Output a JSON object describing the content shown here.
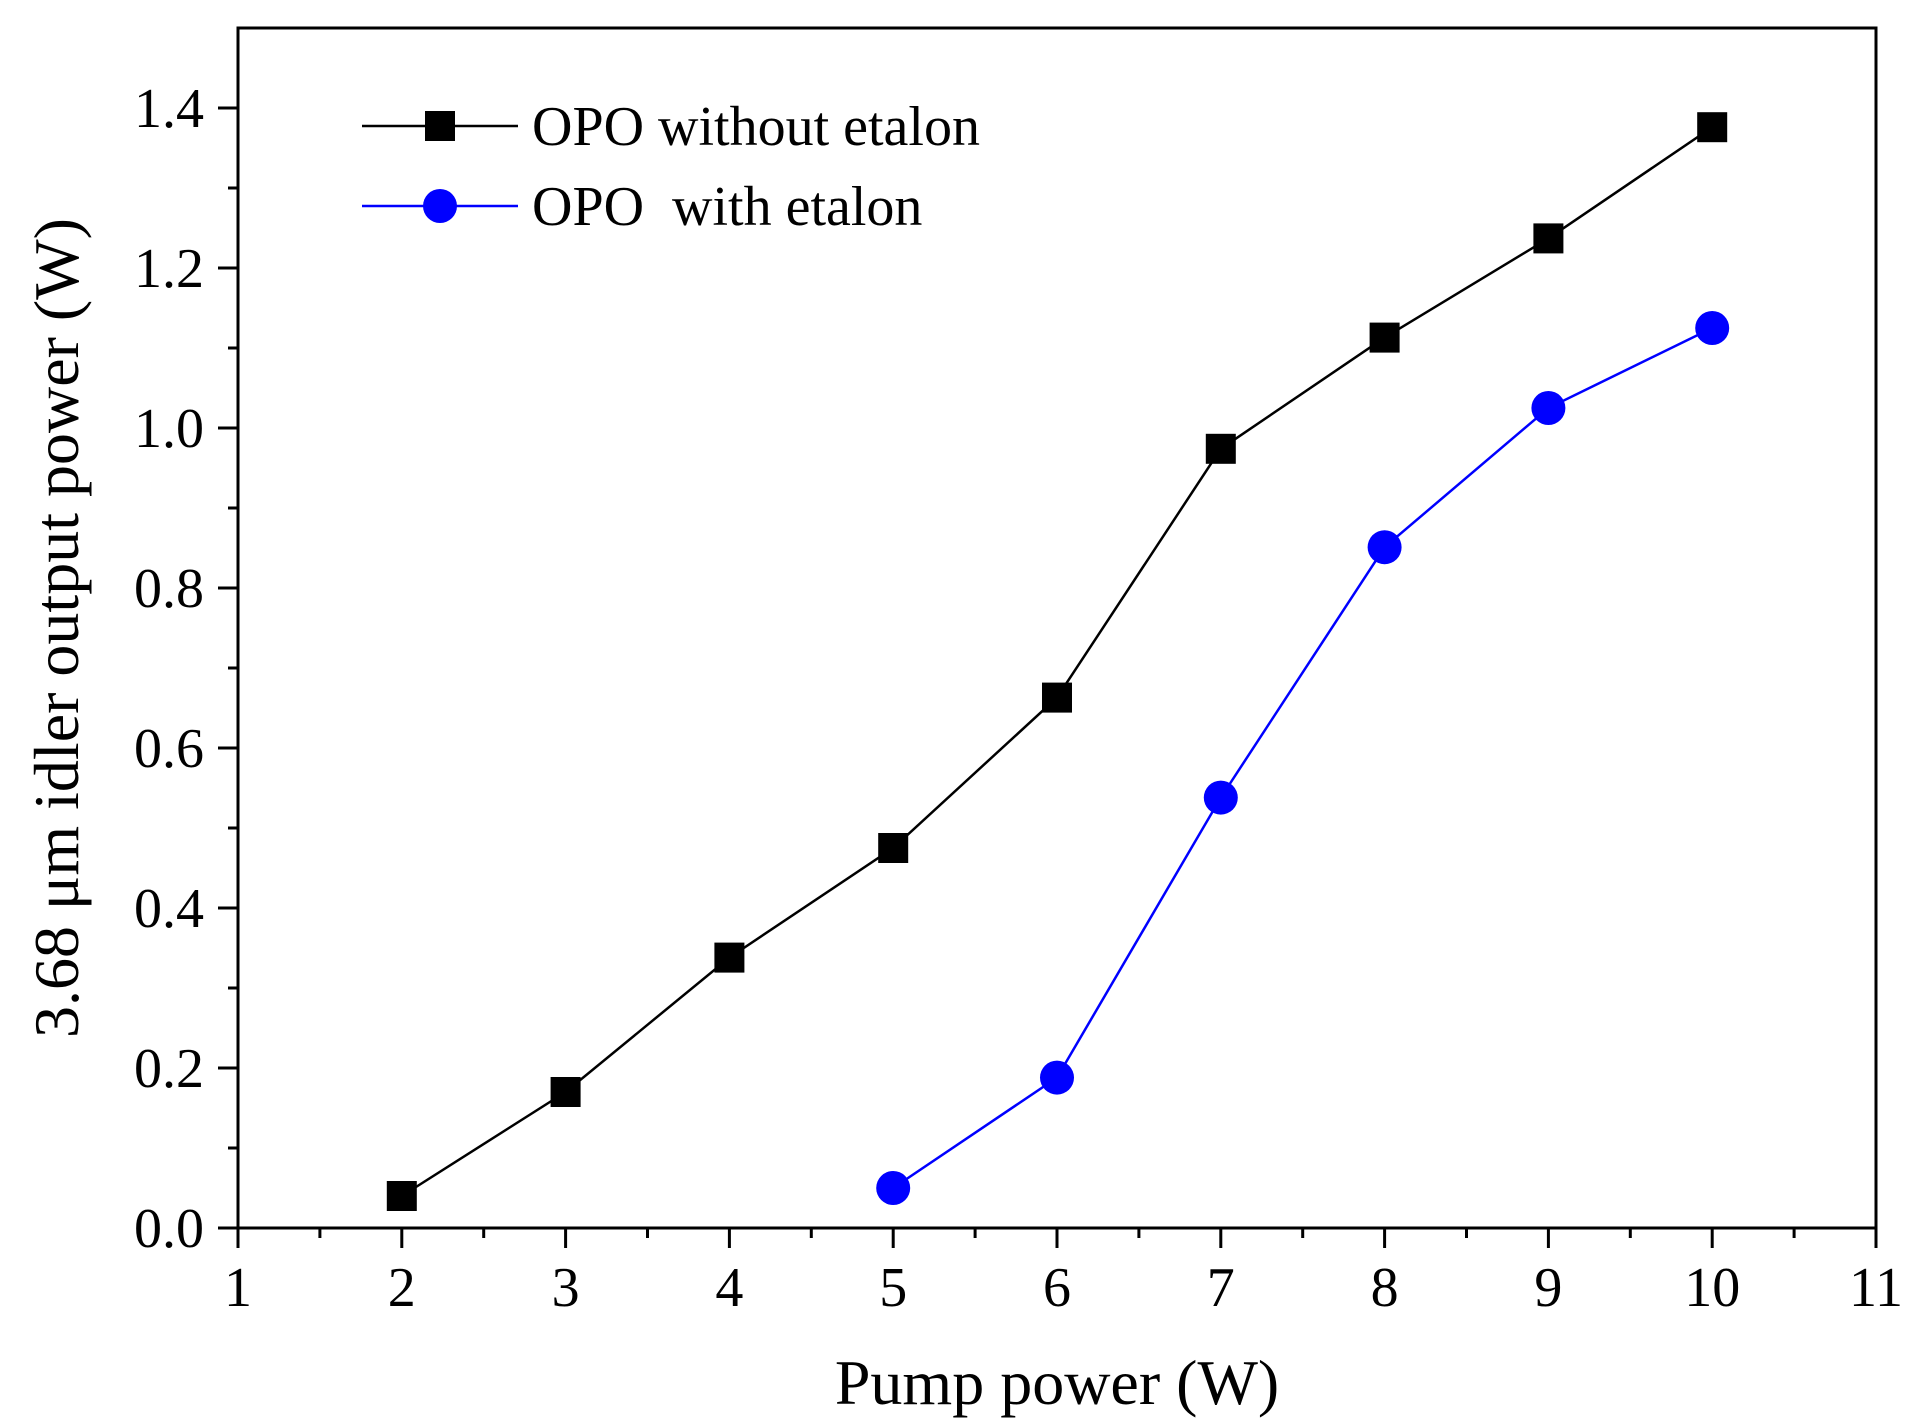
{
  "chart_data": {
    "type": "line",
    "title": "",
    "xlabel": "Pump power (W)",
    "ylabel": "3.68 μm idler output power (W)",
    "xlim": [
      1,
      11
    ],
    "ylim": [
      0,
      1.5
    ],
    "x_ticks": [
      1,
      2,
      3,
      4,
      5,
      6,
      7,
      8,
      9,
      10,
      11
    ],
    "x_tick_labels": [
      "1",
      "2",
      "3",
      "4",
      "5",
      "6",
      "7",
      "8",
      "9",
      "10",
      "11"
    ],
    "y_ticks": [
      0.0,
      0.2,
      0.4,
      0.6,
      0.8,
      1.0,
      1.2,
      1.4
    ],
    "y_tick_labels": [
      "0.0",
      "0.2",
      "0.4",
      "0.6",
      "0.8",
      "1.0",
      "1.2",
      "1.4"
    ],
    "legend_position": "top-left",
    "grid": false,
    "series": [
      {
        "name": "OPO without etalon",
        "marker": "square",
        "color": "#000000",
        "x": [
          2,
          3,
          4,
          5,
          6,
          7,
          8,
          9,
          10
        ],
        "y": [
          0.04,
          0.17,
          0.338,
          0.475,
          0.663,
          0.974,
          1.113,
          1.237,
          1.376
        ]
      },
      {
        "name": "OPO  with etalon",
        "marker": "circle",
        "color": "#0000ff",
        "x": [
          5,
          6,
          7,
          8,
          9,
          10
        ],
        "y": [
          0.05,
          0.188,
          0.538,
          0.851,
          1.025,
          1.125
        ]
      }
    ]
  }
}
